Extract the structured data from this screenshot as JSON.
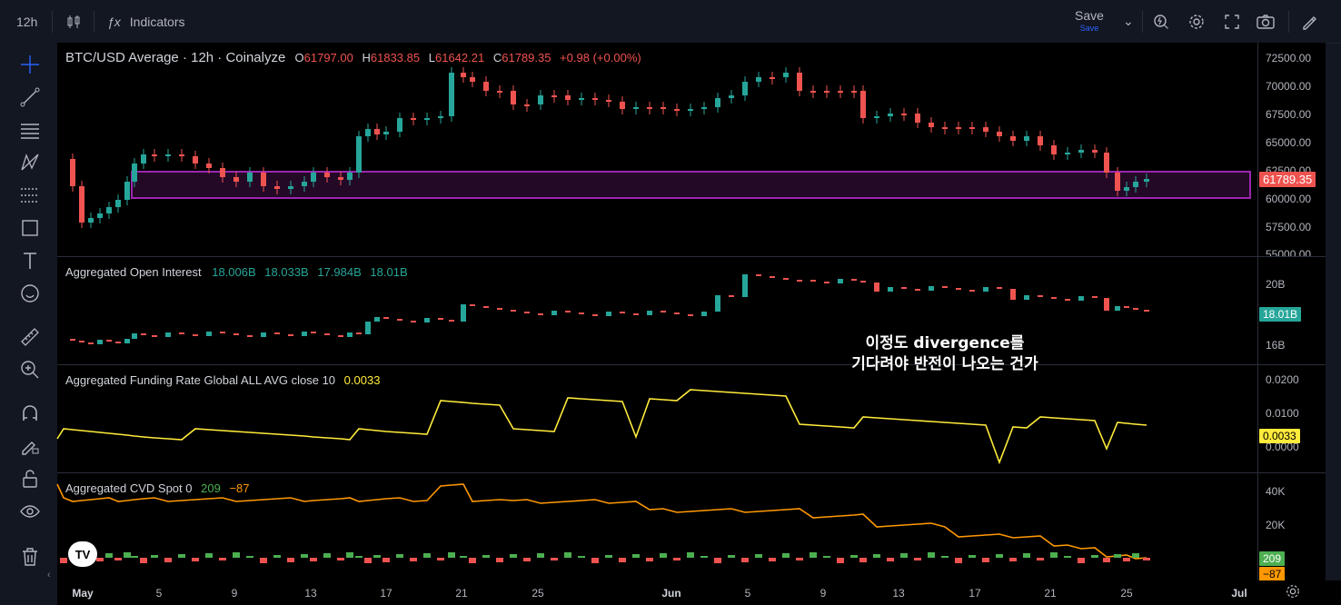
{
  "topbar": {
    "interval": "12h",
    "indicators_label": "Indicators",
    "save_label": "Save",
    "save_sub_label": "Save"
  },
  "main": {
    "symbol_title": "BTC/USD Average · 12h · Coinalyze",
    "ohlc": {
      "o_label": "O",
      "o": "61797.00",
      "h_label": "H",
      "h": "61833.85",
      "l_label": "L",
      "l": "61642.21",
      "c_label": "C",
      "c": "61789.35",
      "change": "+0.98 (+0.00%)"
    },
    "last_price": "61789.35",
    "y_ticks": [
      "72500.00",
      "70000.00",
      "67500.00",
      "65000.00",
      "62500.00",
      "60000.00",
      "57500.00",
      "55000.00"
    ]
  },
  "oi": {
    "title": "Aggregated Open Interest",
    "values": [
      "18.006B",
      "18.033B",
      "17.984B",
      "18.01B"
    ],
    "last": "18.01B",
    "y_ticks": [
      "20B",
      "16B"
    ]
  },
  "funding": {
    "title": "Aggregated Funding Rate Global ALL AVG close 10",
    "value": "0.0033",
    "last": "0.0033",
    "y_ticks": [
      "0.0200",
      "0.0100",
      "0.0000"
    ]
  },
  "cvd": {
    "title": "Aggregated CVD Spot 0",
    "v1": "209",
    "v2": "−87",
    "badge1": "209",
    "badge2": "−87",
    "y_ticks": [
      "40K",
      "20K"
    ]
  },
  "annotation": {
    "line1": "이정도 divergence를",
    "line2": "기다려야 반전이 나오는 건가"
  },
  "logo_text": "TV",
  "x_ticks": [
    "May",
    "5",
    "9",
    "13",
    "17",
    "21",
    "25",
    "Jun",
    "5",
    "9",
    "13",
    "17",
    "21",
    "25",
    "Jul"
  ],
  "colors": {
    "up": "#26a69a",
    "down": "#ef5350",
    "zone_border": "#9c27b0",
    "zone_fill": "#2a0a2e",
    "funding_line": "#ffeb3b",
    "funding_neg": "#4fc3f7",
    "cvd_line": "#ff9800"
  }
}
